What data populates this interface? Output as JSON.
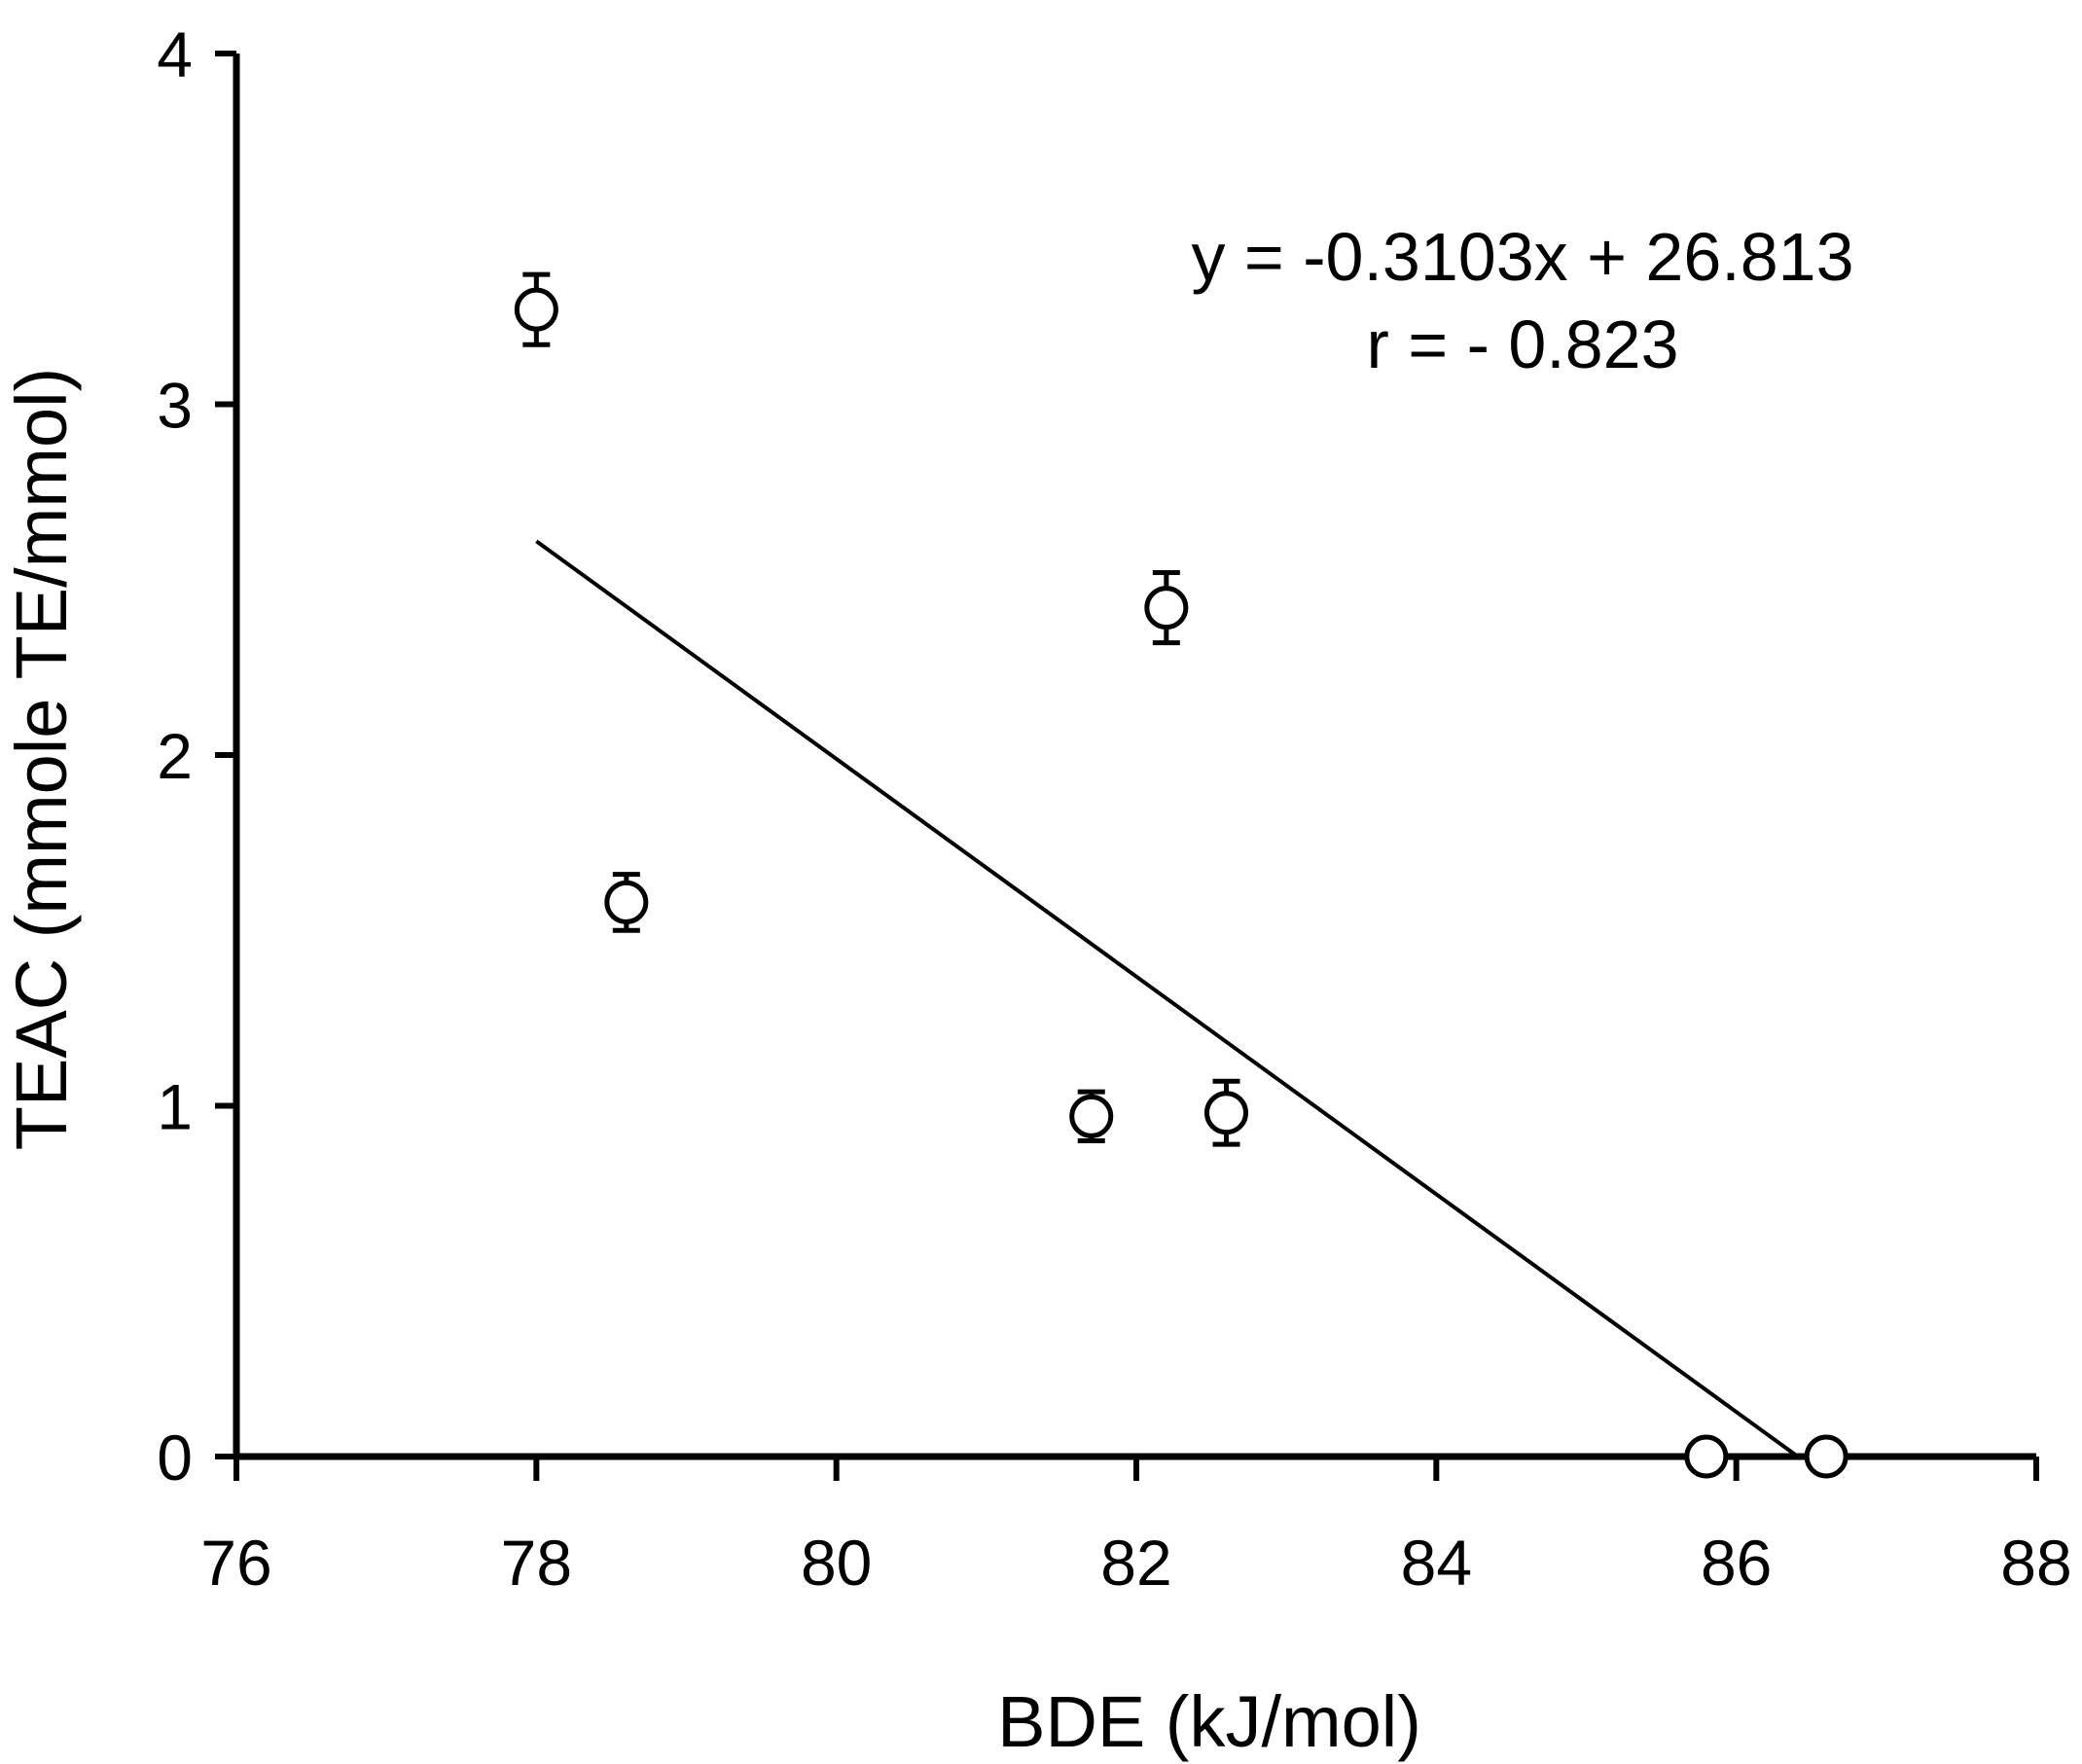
{
  "chart_data": {
    "type": "scatter",
    "title": "",
    "xlabel": "BDE (kJ/mol)",
    "ylabel": "TEAC (mmole TE/mmol)",
    "xlim": [
      76,
      88
    ],
    "ylim": [
      0,
      4
    ],
    "x_ticks": [
      76,
      78,
      80,
      82,
      84,
      86,
      88
    ],
    "y_ticks": [
      0,
      1,
      2,
      3,
      4
    ],
    "grid": false,
    "legend": "none",
    "series": [
      {
        "marker": "open-circle",
        "points": [
          {
            "x": 78.0,
            "y": 3.27,
            "err": 0.1
          },
          {
            "x": 78.6,
            "y": 1.58,
            "err": 0.08
          },
          {
            "x": 81.7,
            "y": 0.97,
            "err": 0.07
          },
          {
            "x": 82.2,
            "y": 2.42,
            "err": 0.1
          },
          {
            "x": 82.6,
            "y": 0.98,
            "err": 0.09
          },
          {
            "x": 85.8,
            "y": 0.0,
            "err": 0.0
          },
          {
            "x": 86.6,
            "y": 0.0,
            "err": 0.0
          }
        ]
      }
    ],
    "trendline": {
      "slope": -0.3103,
      "intercept": 26.813,
      "x_range": [
        78.0,
        86.42
      ]
    },
    "annotations": {
      "equation": "y = -0.3103x + 26.813",
      "r": "r = - 0.823"
    }
  }
}
